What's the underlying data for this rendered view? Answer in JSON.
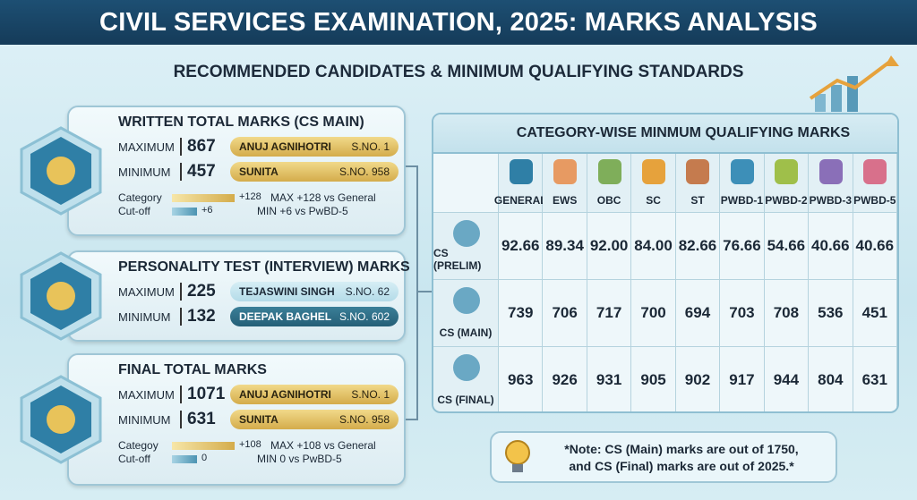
{
  "header": {
    "title": "CIVIL SERVICES EXAMINATION, 2025: MARKS ANALYSIS",
    "subtitle": "RECOMMENDED CANDIDATES & MINIMUM QUALIFYING STANDARDS"
  },
  "panels": [
    {
      "title": "WRITTEN TOTAL MARKS (CS MAIN)",
      "rows": [
        {
          "label": "MAXIMUM",
          "marks": "867",
          "name": "ANUJ AGNIHOTRI",
          "sno": "S.NO. 1"
        },
        {
          "label": "MINIMUM",
          "marks": "457",
          "name": "SUNITA",
          "sno": "S.NO. 958"
        }
      ],
      "cutoff": {
        "label": [
          "Category",
          "Cut-off"
        ],
        "bars": [
          {
            "delta": "+128",
            "text": "MAX +128 vs General"
          },
          {
            "delta": "+6",
            "text": "MIN +6 vs PwBD-5"
          }
        ]
      }
    },
    {
      "title": "PERSONALITY TEST (INTERVIEW) MARKS",
      "rows": [
        {
          "label": "MAXIMUM",
          "marks": "225",
          "name": "TEJASWINI SINGH",
          "sno": "S.NO. 62"
        },
        {
          "label": "MINIMUM",
          "marks": "132",
          "name": "DEEPAK BAGHEL",
          "sno": "S.NO. 602"
        }
      ]
    },
    {
      "title": "FINAL TOTAL MARKS",
      "rows": [
        {
          "label": "MAXIMUM",
          "marks": "1071",
          "name": "ANUJ AGNIHOTRI",
          "sno": "S.NO. 1"
        },
        {
          "label": "MINIMUM",
          "marks": "631",
          "name": "SUNITA",
          "sno": "S.NO. 958"
        }
      ],
      "cutoff": {
        "label": [
          "Categoy",
          "Cut-off"
        ],
        "bars": [
          {
            "delta": "+108",
            "text": "MAX +108 vs General"
          },
          {
            "delta": "0",
            "text": "MIN 0 vs PwBD-5"
          }
        ]
      }
    }
  ],
  "table": {
    "title": "CATEGORY-WISE MINMUM QUALIFYING MARKS",
    "columns": [
      "GENERAL",
      "EWS",
      "OBC",
      "SC",
      "ST",
      "PWBD-1",
      "PWBD-2",
      "PWBD-3",
      "PWBD-5"
    ],
    "rows": [
      {
        "label": "CS (PRELIM)",
        "values": [
          "92.66",
          "89.34",
          "92.00",
          "84.00",
          "82.66",
          "76.66",
          "54.66",
          "40.66",
          "40.66"
        ]
      },
      {
        "label": "CS (MAIN)",
        "values": [
          "739",
          "706",
          "717",
          "700",
          "694",
          "703",
          "708",
          "536",
          "451"
        ]
      },
      {
        "label": "CS (FINAL)",
        "values": [
          "963",
          "926",
          "931",
          "905",
          "902",
          "917",
          "944",
          "804",
          "631"
        ]
      }
    ]
  },
  "note": [
    "*Note: CS (Main) marks are out of 1750,",
    "and CS (Final) marks are out of 2025.*"
  ]
}
